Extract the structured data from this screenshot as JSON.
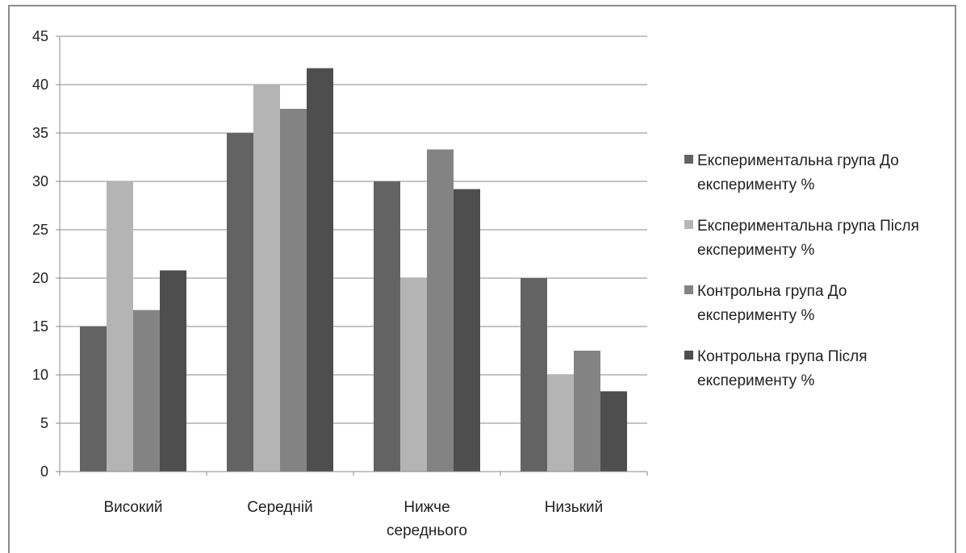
{
  "chart_data": {
    "type": "bar",
    "title": "",
    "xlabel": "",
    "ylabel": "",
    "ylim": [
      0,
      45
    ],
    "yticks": [
      0,
      5,
      10,
      15,
      20,
      25,
      30,
      35,
      40,
      45
    ],
    "grid": true,
    "legend_position": "right",
    "categories": [
      [
        "Високий"
      ],
      [
        "Середній"
      ],
      [
        "Нижче",
        "середнього"
      ],
      [
        "Низький"
      ]
    ],
    "series": [
      {
        "name": [
          "Експериментальна група До",
          "експерименту %"
        ],
        "color": "#636363",
        "values": [
          15,
          35,
          30,
          20
        ]
      },
      {
        "name": [
          "Експериментальна група Після",
          "експерименту %"
        ],
        "color": "#b4b4b4",
        "values": [
          30,
          40,
          20,
          10
        ]
      },
      {
        "name": [
          "Контрольна група До",
          "експерименту %"
        ],
        "color": "#838383",
        "values": [
          16.7,
          37.5,
          33.3,
          12.5
        ]
      },
      {
        "name": [
          "Контрольна група Після",
          "експерименту %"
        ],
        "color": "#4e4e4e",
        "values": [
          20.8,
          41.7,
          29.2,
          8.3
        ]
      }
    ]
  }
}
